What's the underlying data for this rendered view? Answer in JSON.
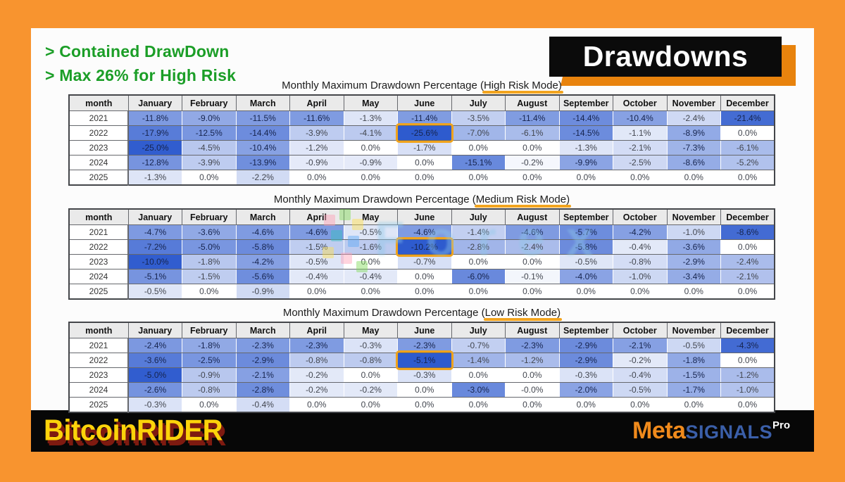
{
  "colors": {
    "frame_orange": "#F8942F",
    "panel_bg": "#FCFCFC",
    "footer_bg": "#070707",
    "green_text": "#1B9E27",
    "badge_bg": "#0B0B0B",
    "badge_shadow_orange": "#E8830D",
    "cell_deep_blue": "#2E5BCE",
    "cell_light": "#FFFFFF",
    "header_cell_bg": "#EAEAEA",
    "highlight_orange": "#F0A31C",
    "title_underline_orange": "#F2A41E",
    "bitcoinrider_yellow": "#FCD30A",
    "bitcoinrider_shadow_red": "#7E1A10",
    "meta_orange": "#F08A1C",
    "signals_blue": "#3B5FA9"
  },
  "header": {
    "bullets": [
      "> Contained DrawDown",
      "> Max 26% for High Risk"
    ],
    "badge_label": "Drawdowns"
  },
  "watermark": {
    "text": "Forex"
  },
  "tables": [
    {
      "id": "high",
      "title_prefix": "Monthly Maximum Drawdown Percentage (",
      "mode": "High Risk Mode",
      "title_suffix": ")",
      "columns": [
        "month",
        "January",
        "February",
        "March",
        "April",
        "May",
        "June",
        "July",
        "August",
        "September",
        "October",
        "November",
        "December"
      ],
      "rows": [
        {
          "year": "2021",
          "cells": [
            "-11.8%",
            "-9.0%",
            "-11.5%",
            "-11.6%",
            "-1.3%",
            "-11.4%",
            "-3.5%",
            "-11.4%",
            "-14.4%",
            "-10.4%",
            "-2.4%",
            "-21.4%"
          ]
        },
        {
          "year": "2022",
          "cells": [
            "-17.9%",
            "-12.5%",
            "-14.4%",
            "-3.9%",
            "-4.1%",
            "-25.6%",
            "-7.0%",
            "-6.1%",
            "-14.5%",
            "-1.1%",
            "-8.9%",
            "0.0%"
          ]
        },
        {
          "year": "2023",
          "cells": [
            "-25.0%",
            "-4.5%",
            "-10.4%",
            "-1.2%",
            "0.0%",
            "-1.7%",
            "0.0%",
            "0.0%",
            "-1.3%",
            "-2.1%",
            "-7.3%",
            "-6.1%"
          ]
        },
        {
          "year": "2024",
          "cells": [
            "-12.8%",
            "-3.9%",
            "-13.9%",
            "-0.9%",
            "-0.9%",
            "0.0%",
            "-15.1%",
            "-0.2%",
            "-9.9%",
            "-2.5%",
            "-8.6%",
            "-5.2%"
          ]
        },
        {
          "year": "2025",
          "cells": [
            "-1.3%",
            "0.0%",
            "-2.2%",
            "0.0%",
            "0.0%",
            "0.0%",
            "0.0%",
            "0.0%",
            "0.0%",
            "0.0%",
            "0.0%",
            "0.0%"
          ]
        }
      ],
      "highlight": {
        "row_index": 1,
        "col_index": 5
      }
    },
    {
      "id": "medium",
      "title_prefix": "Monthly Maximum Drawdown Percentage (",
      "mode": "Medium Risk Mode",
      "title_suffix": ")",
      "columns": [
        "month",
        "January",
        "February",
        "March",
        "April",
        "May",
        "June",
        "July",
        "August",
        "September",
        "October",
        "November",
        "December"
      ],
      "rows": [
        {
          "year": "2021",
          "cells": [
            "-4.7%",
            "-3.6%",
            "-4.6%",
            "-4.6%",
            "-0.5%",
            "-4.6%",
            "-1.4%",
            "-4.6%",
            "-5.7%",
            "-4.2%",
            "-1.0%",
            "-8.6%"
          ]
        },
        {
          "year": "2022",
          "cells": [
            "-7.2%",
            "-5.0%",
            "-5.8%",
            "-1.5%",
            "-1.6%",
            "-10.2%",
            "-2.8%",
            "-2.4%",
            "-5.8%",
            "-0.4%",
            "-3.6%",
            "0.0%"
          ]
        },
        {
          "year": "2023",
          "cells": [
            "-10.0%",
            "-1.8%",
            "-4.2%",
            "-0.5%",
            "0.0%",
            "-0.7%",
            "0.0%",
            "0.0%",
            "-0.5%",
            "-0.8%",
            "-2.9%",
            "-2.4%"
          ]
        },
        {
          "year": "2024",
          "cells": [
            "-5.1%",
            "-1.5%",
            "-5.6%",
            "-0.4%",
            "-0.4%",
            "0.0%",
            "-6.0%",
            "-0.1%",
            "-4.0%",
            "-1.0%",
            "-3.4%",
            "-2.1%"
          ]
        },
        {
          "year": "2025",
          "cells": [
            "-0.5%",
            "0.0%",
            "-0.9%",
            "0.0%",
            "0.0%",
            "0.0%",
            "0.0%",
            "0.0%",
            "0.0%",
            "0.0%",
            "0.0%",
            "0.0%"
          ]
        }
      ],
      "highlight": {
        "row_index": 1,
        "col_index": 5
      }
    },
    {
      "id": "low",
      "title_prefix": "Monthly Maximum Drawdown Percentage (",
      "mode": "Low Risk Mode",
      "title_suffix": ")",
      "columns": [
        "month",
        "January",
        "February",
        "March",
        "April",
        "May",
        "June",
        "July",
        "August",
        "September",
        "October",
        "November",
        "December"
      ],
      "rows": [
        {
          "year": "2021",
          "cells": [
            "-2.4%",
            "-1.8%",
            "-2.3%",
            "-2.3%",
            "-0.3%",
            "-2.3%",
            "-0.7%",
            "-2.3%",
            "-2.9%",
            "-2.1%",
            "-0.5%",
            "-4.3%"
          ]
        },
        {
          "year": "2022",
          "cells": [
            "-3.6%",
            "-2.5%",
            "-2.9%",
            "-0.8%",
            "-0.8%",
            "-5.1%",
            "-1.4%",
            "-1.2%",
            "-2.9%",
            "-0.2%",
            "-1.8%",
            "0.0%"
          ]
        },
        {
          "year": "2023",
          "cells": [
            "-5.0%",
            "-0.9%",
            "-2.1%",
            "-0.2%",
            "0.0%",
            "-0.3%",
            "0.0%",
            "0.0%",
            "-0.3%",
            "-0.4%",
            "-1.5%",
            "-1.2%"
          ]
        },
        {
          "year": "2024",
          "cells": [
            "-2.6%",
            "-0.8%",
            "-2.8%",
            "-0.2%",
            "-0.2%",
            "0.0%",
            "-3.0%",
            "-0.0%",
            "-2.0%",
            "-0.5%",
            "-1.7%",
            "-1.0%"
          ]
        },
        {
          "year": "2025",
          "cells": [
            "-0.3%",
            "0.0%",
            "-0.4%",
            "0.0%",
            "0.0%",
            "0.0%",
            "0.0%",
            "0.0%",
            "0.0%",
            "0.0%",
            "0.0%",
            "0.0%"
          ]
        }
      ],
      "highlight": {
        "row_index": 1,
        "col_index": 5
      }
    }
  ],
  "footer": {
    "left_logo": "BitcoinRIDER",
    "right_logo": {
      "meta": "Meta",
      "signals": "SIGNALS",
      "pro": "Pro"
    }
  }
}
